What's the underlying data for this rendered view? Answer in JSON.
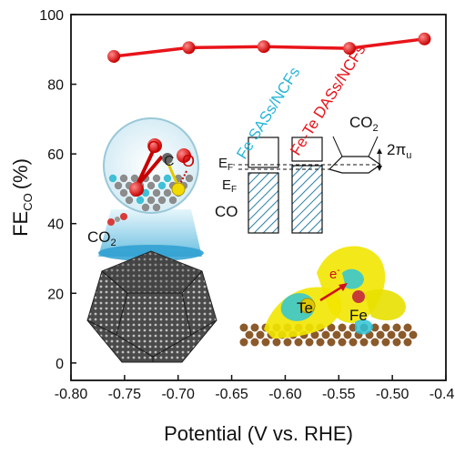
{
  "chart_data": {
    "type": "line",
    "title": "",
    "xlabel": "Potential (V vs. RHE)",
    "ylabel_main": "FE",
    "ylabel_sub": "CO",
    "ylabel_unit": "(%)",
    "xlim": [
      -0.8,
      -0.45
    ],
    "ylim": [
      -5,
      100
    ],
    "xticks": [
      "-0.80",
      "-0.75",
      "-0.70",
      "-0.65",
      "-0.60",
      "-0.55",
      "-0.50",
      "-0.45"
    ],
    "xtick_values": [
      -0.8,
      -0.75,
      -0.7,
      -0.65,
      -0.6,
      -0.55,
      -0.5,
      -0.45
    ],
    "yticks": [
      "0",
      "20",
      "40",
      "60",
      "80",
      "100"
    ],
    "ytick_values": [
      0,
      20,
      40,
      60,
      80,
      100
    ],
    "grid": false,
    "series": [
      {
        "color": "#e8141a",
        "x": [
          -0.76,
          -0.69,
          -0.62,
          -0.54,
          -0.47
        ],
        "y": [
          88,
          90.5,
          90.8,
          90.3,
          93
        ]
      }
    ]
  },
  "inset_labels": {
    "fe_sass": "Fe SASs/NCFs",
    "fete_dass": "Fe-Te DASs/NCFs",
    "co2_top": "CO",
    "co2_top_sub": "2",
    "pi_u": "2π",
    "pi_u_sub": "u",
    "ef_prime": "E",
    "ef_prime_sub": "F'",
    "ef": "E",
    "ef_sub": "F",
    "co": "CO",
    "co2_left": "CO",
    "co2_left_sub": "2",
    "te": "Te",
    "fe_atom": "Fe",
    "electron": "e",
    "electron_sup": "-",
    "o_left": "O",
    "c_mid": "C",
    "o_right": "O"
  },
  "colors": {
    "series": "#e8141a",
    "fe_sass_text": "#29b6d6",
    "fete_text": "#e8141a",
    "hatch": "#2a7fa8",
    "charge_yellow": "#f2e600",
    "charge_cyan": "#2ec4d8",
    "substrate": "#8b5a2b"
  }
}
